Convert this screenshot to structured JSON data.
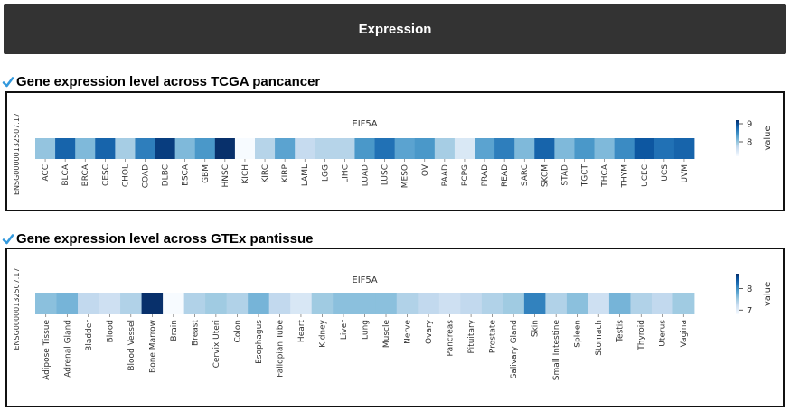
{
  "header": {
    "title": "Expression"
  },
  "sections": [
    {
      "title": "Gene expression level across TCGA pancancer"
    },
    {
      "title": "Gene expression level across GTEx pantissue"
    }
  ],
  "colors": {
    "header_bg": "#333333",
    "check": "#3399dd",
    "scale_low": "#f7fbff",
    "scale_high": "#08306b"
  },
  "chart_data": [
    {
      "type": "heatmap",
      "title": "EIF5A",
      "ylabel": "ENSG00000132507.17",
      "colorbar_label": "value",
      "colorbar_ticks": [
        8,
        9
      ],
      "vmin": 7.2,
      "vmax": 9.2,
      "categories": [
        "ACC",
        "BLCA",
        "BRCA",
        "CESC",
        "CHOL",
        "COAD",
        "DLBC",
        "ESCA",
        "GBM",
        "HNSC",
        "KICH",
        "KIRC",
        "KIRP",
        "LAML",
        "LGG",
        "LIHC",
        "LUAD",
        "LUSC",
        "MESO",
        "OV",
        "PAAD",
        "PCPG",
        "PRAD",
        "READ",
        "SARC",
        "SKCM",
        "STAD",
        "TGCT",
        "THCA",
        "THYM",
        "UCEC",
        "UCS",
        "UVM"
      ],
      "values": [
        8.0,
        8.8,
        8.1,
        8.8,
        7.9,
        8.6,
        9.1,
        8.1,
        8.4,
        9.2,
        7.2,
        7.8,
        8.3,
        7.7,
        7.8,
        7.8,
        8.4,
        8.7,
        8.3,
        8.4,
        7.9,
        7.5,
        8.3,
        8.6,
        8.1,
        8.8,
        8.1,
        8.4,
        8.1,
        8.5,
        8.9,
        8.7,
        8.8
      ]
    },
    {
      "type": "heatmap",
      "title": "EIF5A",
      "ylabel": "ENSG00000132507.17",
      "colorbar_label": "value",
      "colorbar_ticks": [
        7,
        8
      ],
      "vmin": 6.8,
      "vmax": 8.7,
      "categories": [
        "Adipose Tissue",
        "Adrenal Gland",
        "Bladder",
        "Blood",
        "Blood Vessel",
        "Bone Marrow",
        "Brain",
        "Breast",
        "Cervix Uteri",
        "Colon",
        "Esophagus",
        "Fallopian Tube",
        "Heart",
        "Kidney",
        "Liver",
        "Lung",
        "Muscle",
        "Nerve",
        "Ovary",
        "Pancreas",
        "Pituitary",
        "Prostate",
        "Salivary Gland",
        "Skin",
        "Small Intestine",
        "Spleen",
        "Stomach",
        "Testis",
        "Thyroid",
        "Uterus",
        "Vagina"
      ],
      "values": [
        7.6,
        7.7,
        7.3,
        7.2,
        7.4,
        8.7,
        6.8,
        7.4,
        7.5,
        7.4,
        7.7,
        7.3,
        7.1,
        7.5,
        7.6,
        7.6,
        7.6,
        7.4,
        7.3,
        7.2,
        7.3,
        7.4,
        7.5,
        8.1,
        7.4,
        7.6,
        7.2,
        7.7,
        7.4,
        7.3,
        7.5
      ]
    }
  ]
}
